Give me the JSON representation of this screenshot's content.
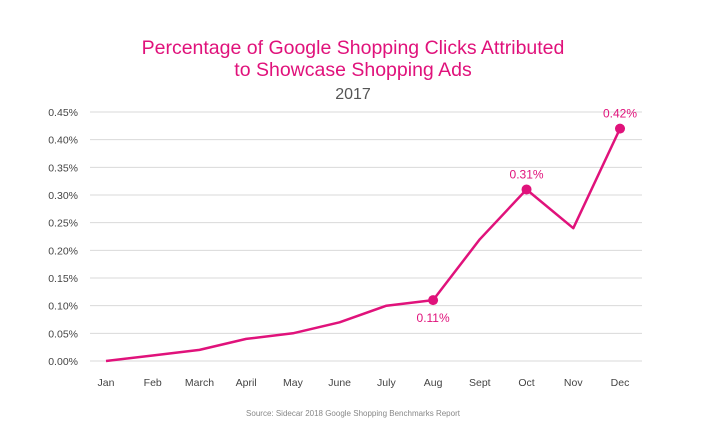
{
  "chart_data": {
    "type": "line",
    "title_line1": "Percentage of Google Shopping Clicks Attributed",
    "title_line2": "to Showcase Shopping Ads",
    "subtitle": "2017",
    "categories": [
      "Jan",
      "Feb",
      "March",
      "April",
      "May",
      "June",
      "July",
      "Aug",
      "Sept",
      "Oct",
      "Nov",
      "Dec"
    ],
    "values": [
      0.0,
      0.01,
      0.02,
      0.04,
      0.05,
      0.07,
      0.1,
      0.11,
      0.22,
      0.31,
      0.24,
      0.42
    ],
    "y_ticks": [
      "0.00%",
      "0.05%",
      "0.10%",
      "0.15%",
      "0.20%",
      "0.25%",
      "0.30%",
      "0.35%",
      "0.40%",
      "0.45%"
    ],
    "ylim": [
      0,
      0.45
    ],
    "grid": true,
    "annotations": [
      {
        "index": 7,
        "label": "0.11%",
        "placement": "below"
      },
      {
        "index": 9,
        "label": "0.31%",
        "placement": "above"
      },
      {
        "index": 11,
        "label": "0.42%",
        "placement": "above"
      }
    ],
    "series_color": "#e0127b",
    "source": "Source: Sidecar 2018 Google Shopping Benchmarks Report"
  }
}
